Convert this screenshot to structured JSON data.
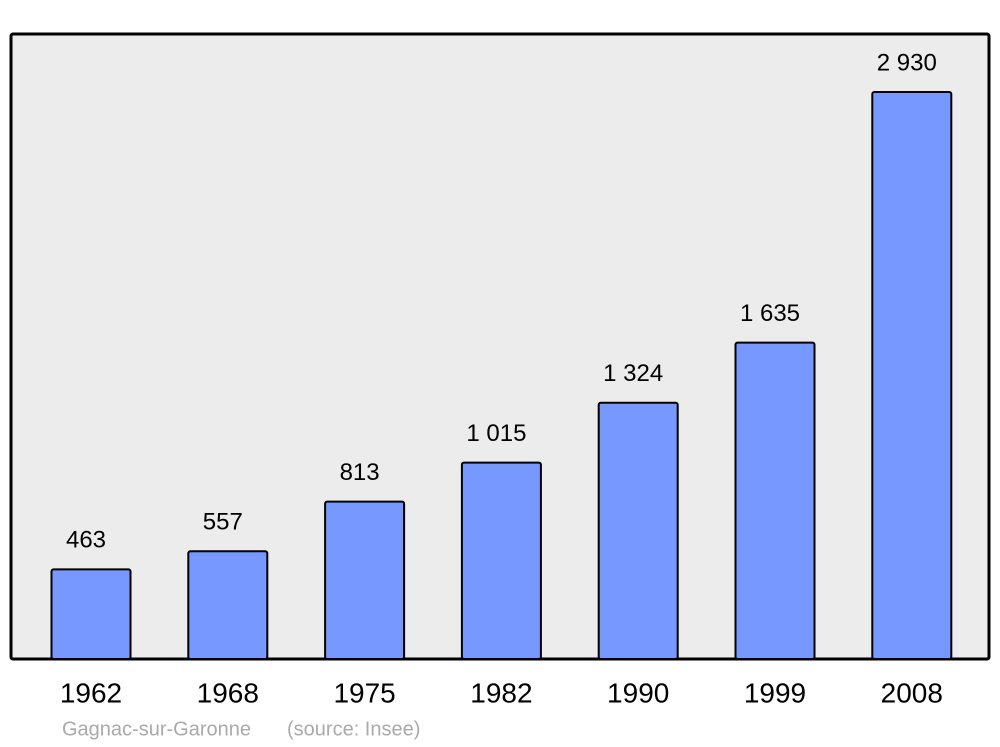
{
  "chart_data": {
    "type": "bar",
    "categories": [
      "1962",
      "1968",
      "1975",
      "1982",
      "1990",
      "1999",
      "2008"
    ],
    "values": [
      463,
      557,
      813,
      1015,
      1324,
      1635,
      2930
    ],
    "value_labels": [
      "463",
      "557",
      "813",
      "1 015",
      "1 324",
      "1 635",
      "2 930"
    ],
    "color": "#7799ff",
    "title": "Gagnac-sur-Garonne",
    "source": "(source: Insee)"
  }
}
